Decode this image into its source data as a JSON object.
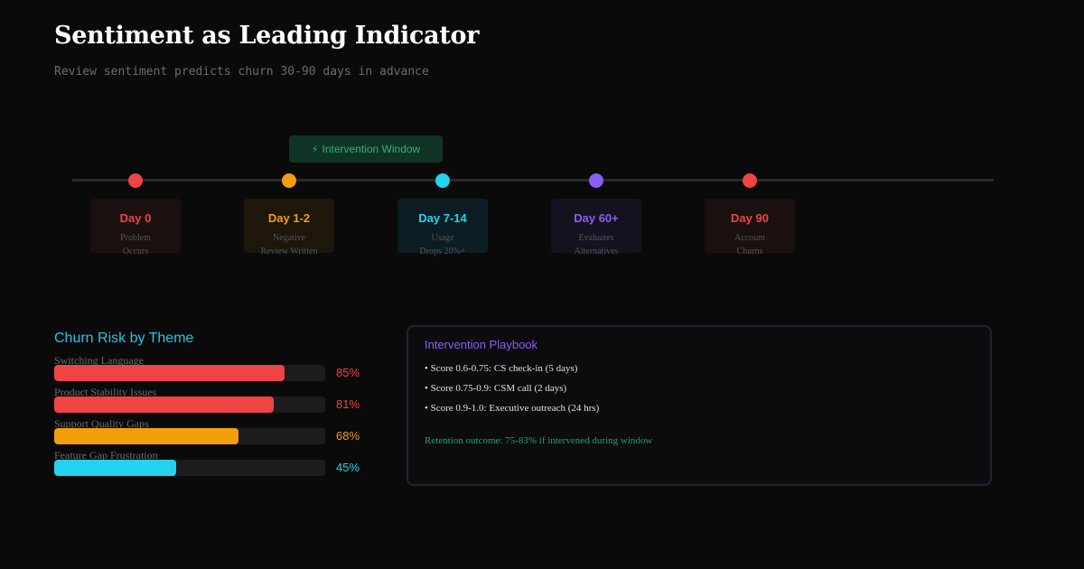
{
  "header": {
    "title": "Sentiment as Leading Indicator",
    "subtitle": "Review sentiment predicts churn 30-90 days in advance"
  },
  "timeline": {
    "window_badge": "Intervention Window",
    "window_icon": "lightning-bolt-icon",
    "stages": [
      {
        "label": "Day 0",
        "line1": "Problem",
        "line2": "Occurs",
        "color": "#ef4444",
        "bg": "#1a1010"
      },
      {
        "label": "Day 1-2",
        "line1": "Negative",
        "line2": "Review Written",
        "color": "#f59e0b",
        "bg": "#1c160b"
      },
      {
        "label": "Day 7-14",
        "line1": "Usage",
        "line2": "Drops 20%+",
        "color": "#22d3ee",
        "bg": "#0b1d22"
      },
      {
        "label": "Day 60+",
        "line1": "Evaluates",
        "line2": "Alternatives",
        "color": "#8b5cf6",
        "bg": "#15121f"
      },
      {
        "label": "Day 90",
        "line1": "Account",
        "line2": "Churns",
        "color": "#ef4444",
        "bg": "#1a1010"
      }
    ]
  },
  "churn_risk": {
    "title": "Churn Risk by Theme",
    "themes": [
      {
        "name": "Switching Language",
        "pct_label": "85%",
        "value": 0.85,
        "color": "#ef4444"
      },
      {
        "name": "Product Stability Issues",
        "pct_label": "81%",
        "value": 0.81,
        "color": "#ef4444"
      },
      {
        "name": "Support Quality Gaps",
        "pct_label": "68%",
        "value": 0.68,
        "color": "#f59e0b"
      },
      {
        "name": "Feature Gap Frustration",
        "pct_label": "45%",
        "value": 0.45,
        "color": "#22d3ee"
      }
    ]
  },
  "playbook": {
    "title": "Intervention Playbook",
    "items": [
      "• Score 0.6-0.75: CS check-in (5 days)",
      "• Score 0.75-0.9: CSM call (2 days)",
      "• Score 0.9-1.0: Executive outreach (24 hrs)"
    ],
    "outcome": "Retention outcome: 75-83% if intervened during window"
  }
}
